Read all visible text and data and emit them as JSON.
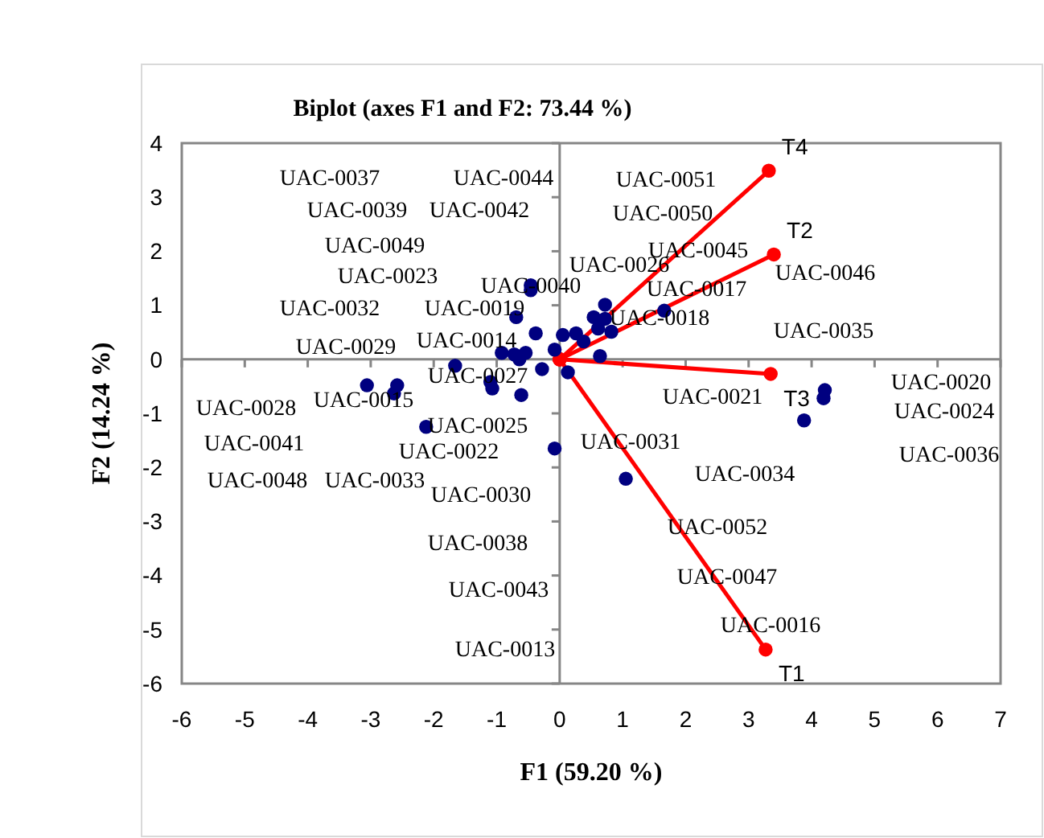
{
  "chart_data": {
    "type": "scatter",
    "title": "Biplot (axes F1 and F2: 73.44 %)",
    "xlabel": "F1 (59.20 %)",
    "ylabel": "F2 (14.24 %)",
    "xlim": [
      -6,
      7
    ],
    "xticks": [
      -6,
      -5,
      -4,
      -3,
      -2,
      -1,
      0,
      1,
      2,
      3,
      4,
      5,
      6,
      7
    ],
    "ylim": [
      -6,
      4
    ],
    "yticks": [
      -6,
      -5,
      -4,
      -3,
      -2,
      -1,
      0,
      1,
      2,
      3,
      4
    ],
    "marker": "circle",
    "series": [
      {
        "color": "#000080",
        "x": [
          -0.46,
          -0.46,
          -0.69,
          -0.38,
          0.05,
          -0.92,
          -0.72,
          -0.54,
          -0.64,
          -0.08,
          -0.28,
          0.13,
          -1.66,
          -3.06,
          -2.58,
          -2.63,
          -2.12,
          -1.1,
          -1.07,
          -0.61,
          -0.08,
          1.05,
          0.72,
          0.54,
          0.72,
          0.61,
          0.82,
          1.66,
          0.26,
          0.38,
          0.64,
          4.21,
          4.19,
          3.88
        ],
        "values": [
          1.37,
          1.28,
          0.78,
          0.48,
          0.45,
          0.12,
          0.09,
          0.12,
          0,
          0.18,
          -0.18,
          -0.24,
          -0.12,
          -0.48,
          -0.48,
          -0.63,
          -1.25,
          -0.42,
          -0.54,
          -0.66,
          -1.65,
          -2.21,
          1.01,
          0.78,
          0.75,
          0.57,
          0.51,
          0.9,
          0.48,
          0.33,
          0.06,
          -0.57,
          -0.72,
          -1.13
        ]
      },
      {
        "type": "line",
        "name": "T1",
        "color": "#ff0000",
        "x": [
          0,
          3.27
        ],
        "values": [
          0,
          -5.37
        ]
      },
      {
        "type": "line",
        "name": "T2",
        "color": "#ff0000",
        "x": [
          0,
          3.4
        ],
        "values": [
          0,
          1.94
        ]
      },
      {
        "type": "line",
        "name": "T3",
        "color": "#ff0000",
        "x": [
          0,
          3.35
        ],
        "values": [
          0,
          -0.27
        ]
      },
      {
        "type": "line",
        "name": "T4",
        "color": "#ff0000",
        "x": [
          0,
          3.32
        ],
        "values": [
          0,
          3.49
        ]
      }
    ],
    "annotations": [
      "UAC-0037",
      "UAC-0039",
      "UAC-0042",
      "UAC-0044",
      "UAC-0049",
      "UAC-0023",
      "UAC-0032",
      "UAC-0019",
      "UAC-0040",
      "UAC-0029",
      "UAC-0014",
      "UAC-0027",
      "UAC-0028",
      "UAC-0015",
      "UAC-0025",
      "UAC-0022",
      "UAC-0041",
      "UAC-0048",
      "UAC-0033",
      "UAC-0030",
      "UAC-0038",
      "UAC-0043",
      "UAC-0013",
      "UAC-0051",
      "UAC-0050",
      "UAC-0045",
      "UAC-0026",
      "UAC-0017",
      "UAC-0018",
      "UAC-0046",
      "UAC-0035",
      "UAC-0021",
      "UAC-0020",
      "UAC-0024",
      "UAC-0036",
      "UAC-0031",
      "UAC-0034",
      "UAC-0052",
      "UAC-0047",
      "UAC-0016"
    ]
  }
}
